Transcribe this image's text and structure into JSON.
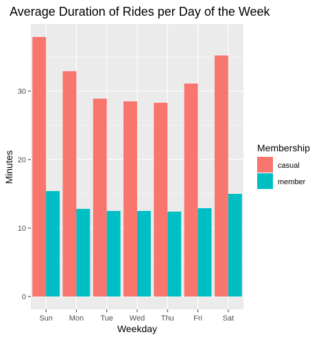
{
  "chart_data": {
    "type": "bar",
    "title": "Average Duration of Rides per Day of the Week",
    "xlabel": "Weekday",
    "ylabel": "Minutes",
    "categories": [
      "Sun",
      "Mon",
      "Tue",
      "Wed",
      "Thu",
      "Fri",
      "Sat"
    ],
    "series": [
      {
        "name": "casual",
        "values": [
          37.9,
          32.9,
          28.9,
          28.5,
          28.3,
          31.1,
          35.2
        ],
        "color": "#F8766D"
      },
      {
        "name": "member",
        "values": [
          15.4,
          12.8,
          12.5,
          12.5,
          12.4,
          12.9,
          15.0
        ],
        "color": "#00BFC4"
      }
    ],
    "ylim": [
      -1.9,
      39.8
    ],
    "yticks": [
      0,
      10,
      20,
      30
    ],
    "ytick_labels": [
      "0",
      "10",
      "20",
      "30"
    ],
    "grid": true,
    "panel_background": "#EBEBEB",
    "legend": {
      "title": "Membership",
      "position": "right",
      "labels": [
        "casual",
        "member"
      ]
    }
  }
}
